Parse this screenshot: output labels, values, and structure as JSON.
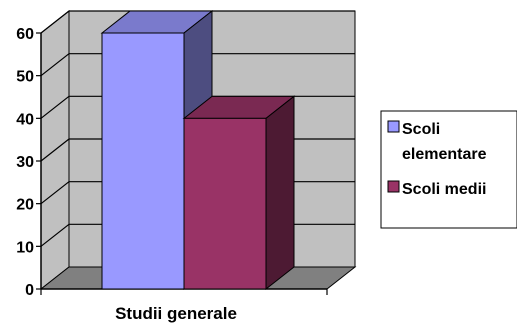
{
  "chart_data": {
    "type": "bar",
    "categories": [
      "Studii generale"
    ],
    "series": [
      {
        "name": "Scoli elementare",
        "values": [
          60
        ],
        "color": "#9999ff"
      },
      {
        "name": "Scoli medii",
        "values": [
          40
        ],
        "color": "#993366"
      }
    ],
    "ylim": [
      0,
      60
    ],
    "yticks": [
      "0",
      "10",
      "20",
      "30",
      "40",
      "50",
      "60"
    ],
    "grid": true,
    "legend": "right",
    "wall_color": "#c0c0c0",
    "floor_color": "#808080"
  }
}
